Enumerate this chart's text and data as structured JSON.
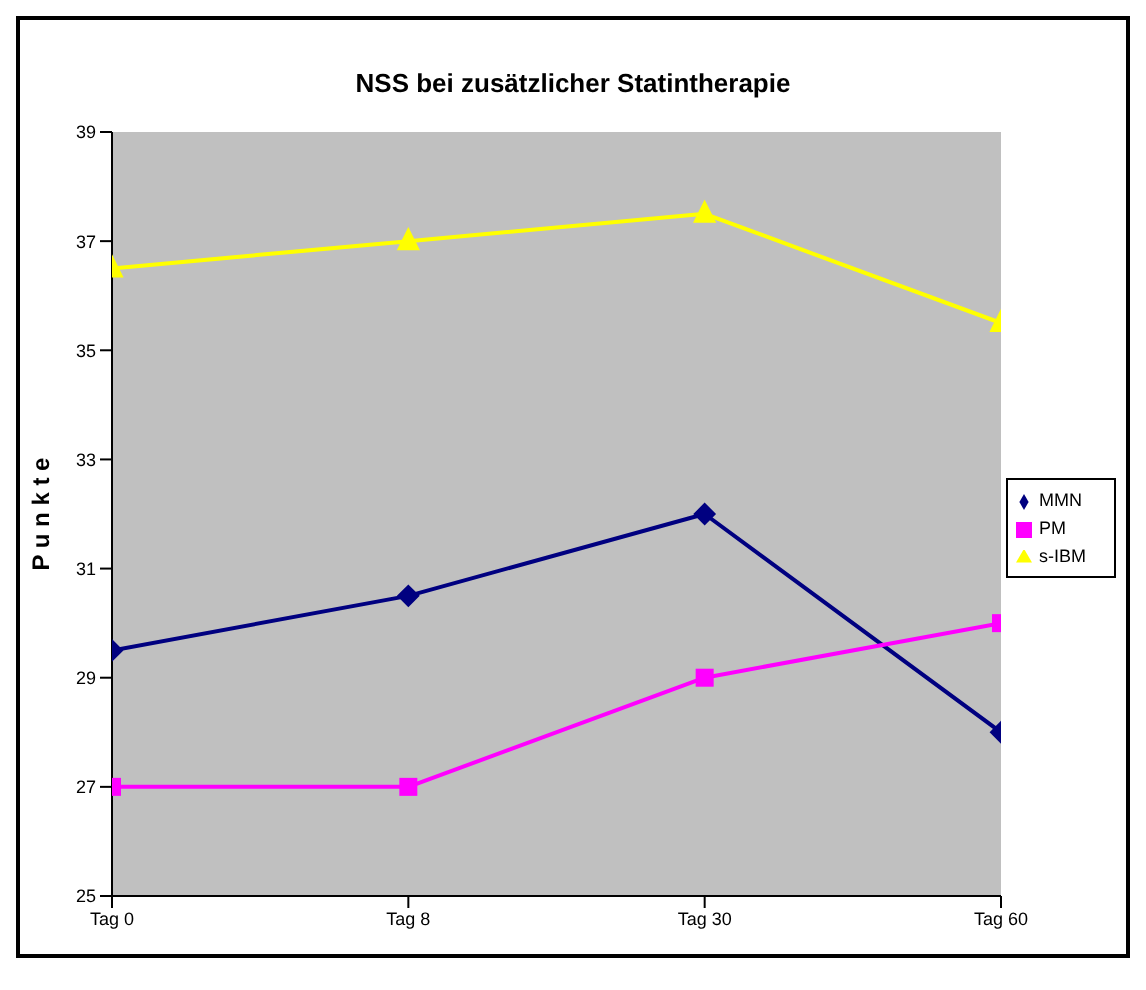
{
  "chart_data": {
    "type": "line",
    "title": "NSS bei zusätzlicher Statintherapie",
    "ylabel": "P u n k t e",
    "categories": [
      "Tag 0",
      "Tag 8",
      "Tag 30",
      "Tag 60"
    ],
    "series": [
      {
        "name": "MMN",
        "color": "#000080",
        "values": [
          29.5,
          30.5,
          32,
          28
        ],
        "marker": "diamond"
      },
      {
        "name": "PM",
        "color": "#ff00ff",
        "values": [
          27,
          27,
          29,
          30
        ],
        "marker": "square"
      },
      {
        "name": "s-IBM",
        "color": "#ffff00",
        "values": [
          36.5,
          37,
          37.5,
          35.5
        ],
        "marker": "triangle"
      }
    ],
    "ylim": [
      25,
      39
    ],
    "yticks": [
      25,
      27,
      29,
      31,
      33,
      35,
      37,
      39
    ],
    "grid": false,
    "legend": "right",
    "line_style": "solid"
  }
}
